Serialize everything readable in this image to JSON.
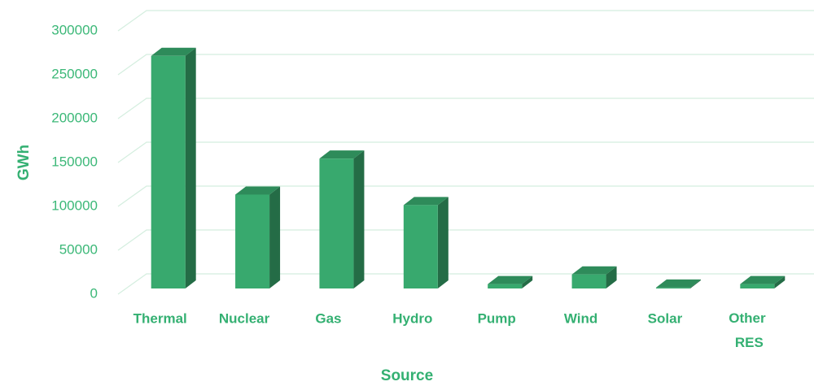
{
  "chart_data": {
    "type": "bar3d",
    "x_label": "Source",
    "y_label": "GWh",
    "categories": [
      "Thermal",
      "Nuclear",
      "Gas",
      "Hydro",
      "Pump",
      "Wind",
      "Solar",
      "Other RES"
    ],
    "values": [
      265000,
      107000,
      148000,
      95000,
      5000,
      16000,
      1000,
      5000
    ],
    "color": "#38a96e",
    "ylim": [
      0,
      300000
    ],
    "yticks": [
      0,
      50000,
      100000,
      150000,
      200000,
      250000,
      300000
    ],
    "grid": true
  }
}
